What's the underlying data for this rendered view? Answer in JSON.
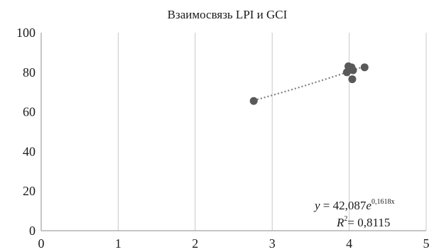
{
  "chart_data": {
    "type": "scatter",
    "title": "Взаимосвязь LPI и GCI",
    "xlabel": "",
    "ylabel": "",
    "xlim": [
      0,
      5
    ],
    "ylim": [
      0,
      100
    ],
    "x_ticks": [
      "0",
      "1",
      "2",
      "3",
      "4",
      "5"
    ],
    "y_ticks": [
      "0",
      "20",
      "40",
      "60",
      "80",
      "100"
    ],
    "grid": {
      "vertical": true,
      "horizontal": false
    },
    "series": [
      {
        "color": "#595959",
        "points": [
          {
            "x": 2.76,
            "y": 65.5
          },
          {
            "x": 3.97,
            "y": 80.0
          },
          {
            "x": 3.99,
            "y": 83.0
          },
          {
            "x": 4.01,
            "y": 81.5
          },
          {
            "x": 4.03,
            "y": 82.5
          },
          {
            "x": 4.05,
            "y": 81.0
          },
          {
            "x": 4.04,
            "y": 76.5
          },
          {
            "x": 4.2,
            "y": 82.5
          }
        ]
      }
    ],
    "trendline": {
      "type": "exponential",
      "a": 42.087,
      "b": 0.1618,
      "x_range": [
        2.76,
        4.2
      ],
      "color": "#7f7f7f",
      "equation_parts": {
        "lhs": "y",
        "eq": " = 42,087",
        "base": "e",
        "exponent": "0,1618x"
      },
      "r2_parts": {
        "label": "R",
        "power": "2",
        "value": "= 0,8115"
      }
    }
  }
}
